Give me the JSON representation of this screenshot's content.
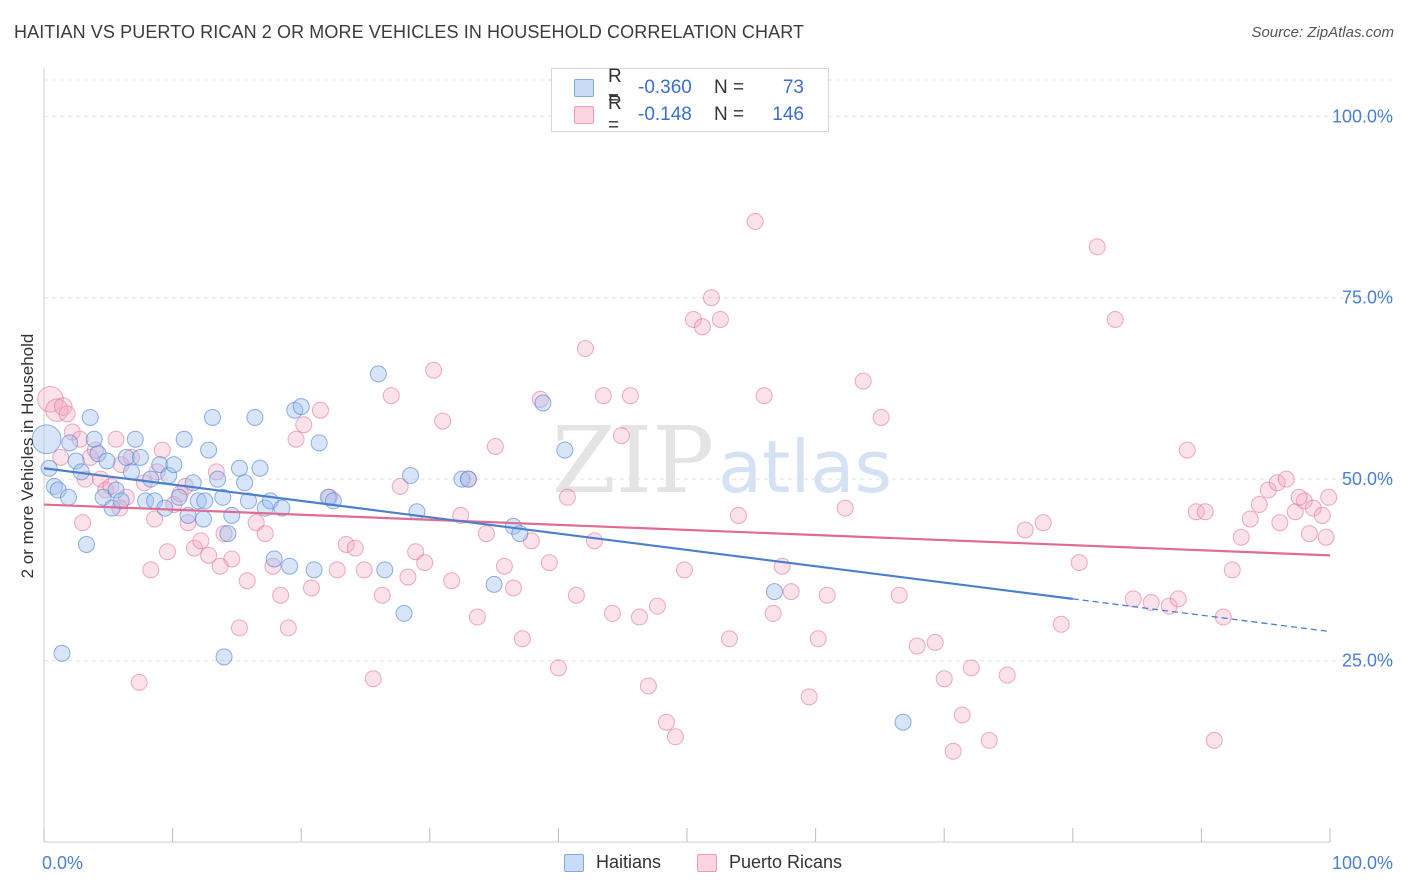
{
  "title": "HAITIAN VS PUERTO RICAN 2 OR MORE VEHICLES IN HOUSEHOLD CORRELATION CHART",
  "source": "Source: ZipAtlas.com",
  "watermark": {
    "zip": "ZIP",
    "atlas": "atlas"
  },
  "legend_top": {
    "rows": [
      {
        "r_label": "R =",
        "r_value": "-0.360",
        "n_label": "N =",
        "n_value": "73",
        "color": "#9dbff0"
      },
      {
        "r_label": "R =",
        "r_value": "-0.148",
        "n_label": "N =",
        "n_value": "146",
        "color": "#f4a9c2"
      }
    ]
  },
  "legend_bottom": [
    {
      "label": "Haitians",
      "color": "#9dbff0"
    },
    {
      "label": "Puerto Ricans",
      "color": "#f4a9c2"
    }
  ],
  "chart_data": {
    "type": "scatter",
    "title": "HAITIAN VS PUERTO RICAN 2 OR MORE VEHICLES IN HOUSEHOLD CORRELATION CHART",
    "xlabel": "",
    "ylabel": "2 or more Vehicles in Household",
    "xlim": [
      0,
      100
    ],
    "ylim": [
      0,
      105
    ],
    "x_tick_labels": [
      "0.0%",
      "100.0%"
    ],
    "y_ticks": [
      {
        "value": 25,
        "label": "25.0%"
      },
      {
        "value": 50,
        "label": "50.0%"
      },
      {
        "value": 75,
        "label": "75.0%"
      },
      {
        "value": 100,
        "label": "100.0%"
      }
    ],
    "grid": true,
    "colors": {
      "haitians": "#4a7fd0",
      "haitians_fill": "#9dbff0",
      "puerto_ricans": "#e06b95",
      "puerto_ricans_fill": "#f4a9c2",
      "tick": "#4a7fd0"
    },
    "series": [
      {
        "name": "Haitians",
        "trend": {
          "x": [
            0,
            80,
            100
          ],
          "y": [
            51.5,
            33.5,
            29
          ],
          "dashed_from": 80
        },
        "points": [
          [
            0.2,
            55.5,
            1.8
          ],
          [
            0.4,
            51.5,
            1
          ],
          [
            0.8,
            49,
            1
          ],
          [
            1.1,
            48.5,
            1
          ],
          [
            1.4,
            26,
            1
          ],
          [
            1.9,
            47.5,
            1
          ],
          [
            2,
            55,
            1
          ],
          [
            2.5,
            52.5,
            1
          ],
          [
            2.9,
            51,
            1
          ],
          [
            3.3,
            41,
            1
          ],
          [
            3.6,
            58.5,
            1
          ],
          [
            3.9,
            55.5,
            1
          ],
          [
            4.2,
            53.5,
            1
          ],
          [
            4.6,
            47.5,
            1
          ],
          [
            4.9,
            52.5,
            1
          ],
          [
            5.3,
            46,
            1
          ],
          [
            5.6,
            48.5,
            1
          ],
          [
            6,
            47,
            1
          ],
          [
            6.4,
            53,
            1
          ],
          [
            6.8,
            51,
            1
          ],
          [
            7.1,
            55.5,
            1
          ],
          [
            7.5,
            53,
            1
          ],
          [
            7.9,
            47,
            1
          ],
          [
            8.3,
            50,
            1
          ],
          [
            8.6,
            47,
            1
          ],
          [
            9,
            52,
            1
          ],
          [
            9.4,
            46,
            1
          ],
          [
            9.7,
            50.5,
            1
          ],
          [
            10.1,
            52,
            1
          ],
          [
            10.5,
            47.5,
            1
          ],
          [
            10.9,
            55.5,
            1
          ],
          [
            11.2,
            45,
            1
          ],
          [
            11.6,
            49.5,
            1
          ],
          [
            12,
            47,
            1
          ],
          [
            12.4,
            44.5,
            1
          ],
          [
            12.8,
            54,
            1
          ],
          [
            13.1,
            58.5,
            1
          ],
          [
            13.5,
            50,
            1
          ],
          [
            13.9,
            47.5,
            1
          ],
          [
            14.3,
            42.5,
            1
          ],
          [
            14.6,
            45,
            1
          ],
          [
            15.2,
            51.5,
            1
          ],
          [
            15.6,
            49.5,
            1
          ],
          [
            15.9,
            47,
            1
          ],
          [
            16.4,
            58.5,
            1
          ],
          [
            16.8,
            51.5,
            1
          ],
          [
            17.2,
            46,
            1
          ],
          [
            17.6,
            47,
            1
          ],
          [
            17.9,
            39,
            1
          ],
          [
            18.5,
            46,
            1
          ],
          [
            19.1,
            38,
            1
          ],
          [
            19.5,
            59.5,
            1
          ],
          [
            20,
            60,
            1
          ],
          [
            21,
            37.5,
            1
          ],
          [
            21.4,
            55,
            1
          ],
          [
            22.1,
            47.5,
            1
          ],
          [
            22.5,
            47,
            1
          ],
          [
            26,
            64.5,
            1
          ],
          [
            26.5,
            37.5,
            1
          ],
          [
            28,
            31.5,
            1
          ],
          [
            28.5,
            50.5,
            1
          ],
          [
            29,
            45.5,
            1
          ],
          [
            32.5,
            50,
            1
          ],
          [
            33,
            50,
            1
          ],
          [
            35,
            35.5,
            1
          ],
          [
            36.5,
            43.5,
            1
          ],
          [
            37,
            42.5,
            1
          ],
          [
            38.8,
            60.5,
            1
          ],
          [
            40.5,
            54,
            1
          ],
          [
            56.8,
            34.5,
            1
          ],
          [
            66.8,
            16.5,
            1
          ],
          [
            14,
            25.5,
            1
          ],
          [
            12.5,
            47,
            1
          ]
        ]
      },
      {
        "name": "Puerto Ricans",
        "trend": {
          "x": [
            0,
            100
          ],
          "y": [
            46.5,
            39.5
          ]
        },
        "points": [
          [
            0.5,
            61,
            1.6
          ],
          [
            1,
            59.5,
            1.4
          ],
          [
            1.5,
            60,
            1.1
          ],
          [
            1.8,
            59,
            1
          ],
          [
            2.2,
            56.5,
            1
          ],
          [
            2.8,
            55.5,
            1
          ],
          [
            3.2,
            50,
            1
          ],
          [
            3.6,
            53,
            1
          ],
          [
            4,
            54,
            1
          ],
          [
            4.4,
            50,
            1
          ],
          [
            4.8,
            48.5,
            1
          ],
          [
            5.2,
            49,
            1
          ],
          [
            5.6,
            55.5,
            1
          ],
          [
            6,
            52,
            1
          ],
          [
            6.4,
            47.5,
            1
          ],
          [
            6.8,
            53,
            1
          ],
          [
            7.4,
            22,
            1
          ],
          [
            7.8,
            49.5,
            1
          ],
          [
            8.3,
            37.5,
            1
          ],
          [
            8.8,
            51,
            1
          ],
          [
            9.2,
            54,
            1
          ],
          [
            9.6,
            40,
            1
          ],
          [
            10.1,
            46.5,
            1
          ],
          [
            10.6,
            48,
            1
          ],
          [
            11.2,
            44,
            1
          ],
          [
            11.7,
            40.5,
            1
          ],
          [
            12.2,
            41.5,
            1
          ],
          [
            12.8,
            39.5,
            1
          ],
          [
            13.4,
            51,
            1
          ],
          [
            14,
            42.5,
            1
          ],
          [
            14.6,
            39,
            1
          ],
          [
            15.2,
            29.5,
            1
          ],
          [
            15.8,
            36,
            1
          ],
          [
            16.5,
            44,
            1
          ],
          [
            17.2,
            42.5,
            1
          ],
          [
            17.8,
            38,
            1
          ],
          [
            18.4,
            34,
            1
          ],
          [
            19,
            29.5,
            1
          ],
          [
            19.6,
            55.5,
            1
          ],
          [
            20.2,
            57.5,
            1
          ],
          [
            20.8,
            35,
            1
          ],
          [
            21.5,
            59.5,
            1
          ],
          [
            22.2,
            47.5,
            1
          ],
          [
            22.8,
            37.5,
            1
          ],
          [
            23.5,
            41,
            1
          ],
          [
            24.2,
            40.5,
            1
          ],
          [
            24.9,
            37.5,
            1
          ],
          [
            25.6,
            22.5,
            1
          ],
          [
            26.3,
            34,
            1
          ],
          [
            27,
            61.5,
            1
          ],
          [
            27.7,
            49,
            1
          ],
          [
            28.3,
            36.5,
            1
          ],
          [
            28.9,
            40,
            1
          ],
          [
            29.6,
            38.5,
            1
          ],
          [
            30.3,
            65,
            1
          ],
          [
            31,
            58,
            1
          ],
          [
            31.7,
            36,
            1
          ],
          [
            32.4,
            45,
            1
          ],
          [
            33,
            50,
            1
          ],
          [
            33.7,
            31,
            1
          ],
          [
            34.4,
            42.5,
            1
          ],
          [
            35.1,
            54.5,
            1
          ],
          [
            35.8,
            38,
            1
          ],
          [
            36.5,
            35,
            1
          ],
          [
            37.2,
            28,
            1
          ],
          [
            37.9,
            41.5,
            1
          ],
          [
            38.6,
            61,
            1
          ],
          [
            39.3,
            38.5,
            1
          ],
          [
            40,
            24,
            1
          ],
          [
            40.7,
            47.5,
            1
          ],
          [
            41.4,
            34,
            1
          ],
          [
            42.1,
            68,
            1
          ],
          [
            42.8,
            41.5,
            1
          ],
          [
            43.5,
            61.5,
            1
          ],
          [
            44.2,
            31.5,
            1
          ],
          [
            44.9,
            56,
            1
          ],
          [
            45.6,
            61.5,
            1
          ],
          [
            46.3,
            31,
            1
          ],
          [
            47,
            21.5,
            1
          ],
          [
            47.7,
            32.5,
            1
          ],
          [
            48.4,
            16.5,
            1
          ],
          [
            49.1,
            14.5,
            1
          ],
          [
            49.8,
            37.5,
            1
          ],
          [
            50.5,
            72,
            1
          ],
          [
            51.2,
            71,
            1
          ],
          [
            51.9,
            75,
            1
          ],
          [
            52.6,
            72,
            1
          ],
          [
            53.3,
            28,
            1
          ],
          [
            54,
            45,
            1
          ],
          [
            55.3,
            85.5,
            1
          ],
          [
            56,
            61.5,
            1
          ],
          [
            56.7,
            31.5,
            1
          ],
          [
            57.4,
            38,
            1
          ],
          [
            58.1,
            34.5,
            1
          ],
          [
            59.5,
            20,
            1
          ],
          [
            60.2,
            28,
            1
          ],
          [
            60.9,
            34,
            1
          ],
          [
            62.3,
            46,
            1
          ],
          [
            63.7,
            63.5,
            1
          ],
          [
            65.1,
            58.5,
            1
          ],
          [
            66.5,
            34,
            1
          ],
          [
            67.9,
            27,
            1
          ],
          [
            69.3,
            27.5,
            1
          ],
          [
            70,
            22.5,
            1
          ],
          [
            70.7,
            12.5,
            1
          ],
          [
            71.4,
            17.5,
            1
          ],
          [
            72.1,
            24,
            1
          ],
          [
            73.5,
            14,
            1
          ],
          [
            74.9,
            23,
            1
          ],
          [
            76.3,
            43,
            1
          ],
          [
            77.7,
            44,
            1
          ],
          [
            79.1,
            30,
            1
          ],
          [
            80.5,
            38.5,
            1
          ],
          [
            81.9,
            82,
            1
          ],
          [
            83.3,
            72,
            1
          ],
          [
            84.7,
            33.5,
            1
          ],
          [
            86.1,
            33,
            1
          ],
          [
            87.5,
            32.5,
            1
          ],
          [
            88.2,
            33.5,
            1
          ],
          [
            88.9,
            54,
            1
          ],
          [
            89.6,
            45.5,
            1
          ],
          [
            90.3,
            45.5,
            1
          ],
          [
            91,
            14,
            1
          ],
          [
            91.7,
            31,
            1
          ],
          [
            92.4,
            37.5,
            1
          ],
          [
            93.1,
            42,
            1
          ],
          [
            93.8,
            44.5,
            1
          ],
          [
            94.5,
            46.5,
            1
          ],
          [
            95.2,
            48.5,
            1
          ],
          [
            95.9,
            49.5,
            1
          ],
          [
            96.6,
            50,
            1
          ],
          [
            97.3,
            45.5,
            1
          ],
          [
            98,
            47,
            1
          ],
          [
            98.7,
            46,
            1
          ],
          [
            99.4,
            45,
            1
          ],
          [
            99.7,
            42,
            1
          ],
          [
            98.4,
            42.5,
            1
          ],
          [
            97.6,
            47.5,
            1
          ],
          [
            96.1,
            44,
            1
          ],
          [
            99.9,
            47.5,
            1
          ],
          [
            1.3,
            53,
            1
          ],
          [
            3,
            44,
            1
          ],
          [
            5.9,
            46,
            1
          ],
          [
            8.6,
            44.5,
            1
          ],
          [
            11,
            49,
            1
          ],
          [
            13.7,
            38,
            1
          ]
        ]
      }
    ]
  }
}
